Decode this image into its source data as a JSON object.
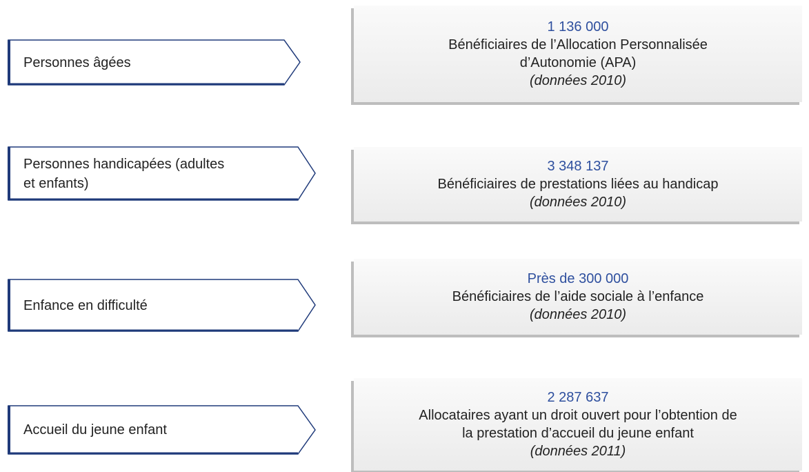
{
  "rows": [
    {
      "category": [
        "Personnes âgées"
      ],
      "figure": "1 136 000",
      "description": [
        "Bénéficiaires de l’Allocation Personnalisée",
        "d’Autonomie (APA)"
      ],
      "note": "(données 2010)"
    },
    {
      "category": [
        "Personnes handicapées (adultes",
        "et enfants)"
      ],
      "figure": "3 348 137",
      "description": [
        "Bénéficiaires de prestations liées au handicap"
      ],
      "note": "(données 2010)"
    },
    {
      "category": [
        "Enfance en difficulté"
      ],
      "figure": "Près de 300 000",
      "description": [
        "Bénéficiaires de l’aide sociale à l’enfance"
      ],
      "note": "(données 2010)"
    },
    {
      "category": [
        "Accueil du jeune enfant"
      ],
      "figure": "2 287 637",
      "description": [
        "Allocataires ayant un droit ouvert pour l’obtention de",
        "la prestation d’accueil du jeune enfant"
      ],
      "note": "(données 2011)"
    }
  ]
}
